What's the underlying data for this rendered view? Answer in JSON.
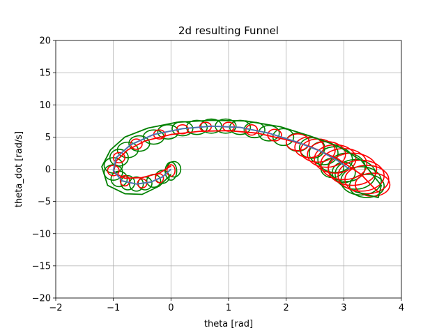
{
  "chart_data": {
    "type": "line",
    "title": "2d resulting Funnel",
    "xlabel": "theta [rad]",
    "ylabel": "theta_dot [rad/s]",
    "xlim": [
      -2,
      4
    ],
    "ylim": [
      -20,
      20
    ],
    "xticks": [
      -2,
      -1,
      0,
      1,
      2,
      3,
      4
    ],
    "yticks": [
      -20,
      -15,
      -10,
      -5,
      0,
      5,
      10,
      15,
      20
    ],
    "xtick_labels": [
      "−2",
      "−1",
      "0",
      "1",
      "2",
      "3",
      "4"
    ],
    "ytick_labels": [
      "−20",
      "−15",
      "−10",
      "−5",
      "0",
      "5",
      "10",
      "15",
      "20"
    ],
    "grid": true,
    "colors": {
      "nominal": "#4c72b0",
      "funnel_outer": "#008000",
      "funnel_inner": "#ff0000"
    },
    "nominal_trajectory": {
      "x": [
        0.0,
        -0.15,
        -0.35,
        -0.6,
        -0.85,
        -1.0,
        -0.95,
        -0.7,
        -0.3,
        0.2,
        0.7,
        1.2,
        1.7,
        2.2,
        2.6,
        2.9,
        3.1
      ],
      "y": [
        0.0,
        -1.2,
        -2.0,
        -2.3,
        -1.8,
        -0.2,
        1.8,
        3.8,
        5.4,
        6.3,
        6.7,
        6.5,
        5.6,
        4.2,
        2.8,
        1.3,
        0.0
      ]
    },
    "funnel_ellipses": [
      {
        "x": 0.05,
        "y": 0.0,
        "rx": 0.12,
        "ry": 1.2,
        "color": "outer"
      },
      {
        "x": 0.0,
        "y": -0.3,
        "rx": 0.1,
        "ry": 1.4,
        "color": "outer"
      },
      {
        "x": -0.15,
        "y": -1.2,
        "rx": 0.12,
        "ry": 1.0,
        "color": "outer"
      },
      {
        "x": -0.3,
        "y": -1.8,
        "rx": 0.12,
        "ry": 1.0,
        "color": "outer"
      },
      {
        "x": -0.45,
        "y": -2.2,
        "rx": 0.12,
        "ry": 1.0,
        "color": "outer"
      },
      {
        "x": -0.6,
        "y": -2.3,
        "rx": 0.12,
        "ry": 1.1,
        "color": "outer"
      },
      {
        "x": -0.75,
        "y": -2.1,
        "rx": 0.12,
        "ry": 1.1,
        "color": "outer"
      },
      {
        "x": -0.9,
        "y": -1.5,
        "rx": 0.14,
        "ry": 1.2,
        "color": "outer"
      },
      {
        "x": -1.0,
        "y": -0.5,
        "rx": 0.16,
        "ry": 1.2,
        "color": "outer"
      },
      {
        "x": -1.0,
        "y": 0.6,
        "rx": 0.16,
        "ry": 1.2,
        "color": "outer"
      },
      {
        "x": -0.9,
        "y": 1.8,
        "rx": 0.16,
        "ry": 1.3,
        "color": "outer"
      },
      {
        "x": -0.75,
        "y": 3.0,
        "rx": 0.18,
        "ry": 1.2,
        "color": "outer"
      },
      {
        "x": -0.55,
        "y": 4.0,
        "rx": 0.18,
        "ry": 1.2,
        "color": "outer"
      },
      {
        "x": -0.3,
        "y": 5.0,
        "rx": 0.18,
        "ry": 1.1,
        "color": "outer"
      },
      {
        "x": -0.05,
        "y": 5.8,
        "rx": 0.18,
        "ry": 1.1,
        "color": "outer"
      },
      {
        "x": 0.2,
        "y": 6.3,
        "rx": 0.18,
        "ry": 1.1,
        "color": "outer"
      },
      {
        "x": 0.45,
        "y": 6.5,
        "rx": 0.18,
        "ry": 1.1,
        "color": "outer"
      },
      {
        "x": 0.7,
        "y": 6.7,
        "rx": 0.18,
        "ry": 1.1,
        "color": "outer"
      },
      {
        "x": 0.95,
        "y": 6.7,
        "rx": 0.18,
        "ry": 1.1,
        "color": "outer"
      },
      {
        "x": 1.2,
        "y": 6.5,
        "rx": 0.18,
        "ry": 1.1,
        "color": "outer"
      },
      {
        "x": 1.45,
        "y": 6.1,
        "rx": 0.18,
        "ry": 1.2,
        "color": "outer"
      },
      {
        "x": 1.7,
        "y": 5.6,
        "rx": 0.18,
        "ry": 1.2,
        "color": "outer"
      },
      {
        "x": 1.95,
        "y": 5.0,
        "rx": 0.18,
        "ry": 1.3,
        "color": "outer"
      },
      {
        "x": 2.2,
        "y": 4.2,
        "rx": 0.2,
        "ry": 1.4,
        "color": "outer"
      },
      {
        "x": 2.45,
        "y": 3.3,
        "rx": 0.22,
        "ry": 1.6,
        "color": "outer"
      },
      {
        "x": 2.65,
        "y": 2.5,
        "rx": 0.25,
        "ry": 1.8,
        "color": "outer"
      },
      {
        "x": 2.85,
        "y": 1.5,
        "rx": 0.3,
        "ry": 2.0,
        "color": "outer"
      },
      {
        "x": 3.05,
        "y": 0.3,
        "rx": 0.32,
        "ry": 2.2,
        "color": "outer"
      },
      {
        "x": 3.2,
        "y": -0.8,
        "rx": 0.35,
        "ry": 2.3,
        "color": "outer"
      },
      {
        "x": 3.3,
        "y": -1.8,
        "rx": 0.35,
        "ry": 2.2,
        "color": "outer"
      },
      {
        "x": 3.4,
        "y": -2.6,
        "rx": 0.3,
        "ry": 1.8,
        "color": "outer"
      },
      {
        "x": 3.0,
        "y": -0.5,
        "rx": 0.2,
        "ry": 1.6,
        "color": "outer"
      },
      {
        "x": 2.8,
        "y": 0.2,
        "rx": 0.2,
        "ry": 1.5,
        "color": "outer"
      },
      {
        "x": 0.0,
        "y": -0.2,
        "rx": 0.07,
        "ry": 0.9,
        "color": "inner"
      },
      {
        "x": -0.2,
        "y": -1.4,
        "rx": 0.07,
        "ry": 0.7,
        "color": "inner"
      },
      {
        "x": -0.5,
        "y": -2.2,
        "rx": 0.08,
        "ry": 0.7,
        "color": "inner"
      },
      {
        "x": -0.8,
        "y": -1.8,
        "rx": 0.08,
        "ry": 0.8,
        "color": "inner"
      },
      {
        "x": -1.0,
        "y": -0.2,
        "rx": 0.1,
        "ry": 0.8,
        "color": "inner"
      },
      {
        "x": -0.9,
        "y": 1.8,
        "rx": 0.1,
        "ry": 0.8,
        "color": "inner"
      },
      {
        "x": -0.6,
        "y": 3.9,
        "rx": 0.1,
        "ry": 0.8,
        "color": "inner"
      },
      {
        "x": -0.2,
        "y": 5.4,
        "rx": 0.1,
        "ry": 0.7,
        "color": "inner"
      },
      {
        "x": 0.2,
        "y": 6.2,
        "rx": 0.1,
        "ry": 0.7,
        "color": "inner"
      },
      {
        "x": 0.6,
        "y": 6.6,
        "rx": 0.1,
        "ry": 0.7,
        "color": "inner"
      },
      {
        "x": 1.0,
        "y": 6.6,
        "rx": 0.1,
        "ry": 0.7,
        "color": "inner"
      },
      {
        "x": 1.4,
        "y": 6.1,
        "rx": 0.1,
        "ry": 0.8,
        "color": "inner"
      },
      {
        "x": 1.8,
        "y": 5.3,
        "rx": 0.12,
        "ry": 0.9,
        "color": "inner"
      },
      {
        "x": 2.2,
        "y": 4.2,
        "rx": 0.2,
        "ry": 1.3,
        "color": "inner"
      },
      {
        "x": 2.4,
        "y": 3.4,
        "rx": 0.25,
        "ry": 1.6,
        "color": "inner"
      },
      {
        "x": 2.55,
        "y": 2.9,
        "rx": 0.3,
        "ry": 1.8,
        "color": "inner"
      },
      {
        "x": 2.7,
        "y": 2.3,
        "rx": 0.33,
        "ry": 2.0,
        "color": "inner"
      },
      {
        "x": 2.85,
        "y": 1.6,
        "rx": 0.36,
        "ry": 2.2,
        "color": "inner"
      },
      {
        "x": 3.0,
        "y": 0.8,
        "rx": 0.4,
        "ry": 2.4,
        "color": "inner"
      },
      {
        "x": 3.15,
        "y": 0.0,
        "rx": 0.42,
        "ry": 2.5,
        "color": "inner"
      },
      {
        "x": 3.3,
        "y": -1.0,
        "rx": 0.4,
        "ry": 2.4,
        "color": "inner"
      },
      {
        "x": 3.4,
        "y": -1.6,
        "rx": 0.38,
        "ry": 2.2,
        "color": "inner"
      },
      {
        "x": 3.5,
        "y": -2.4,
        "rx": 0.3,
        "ry": 1.8,
        "color": "inner"
      }
    ],
    "funnel_boundaries": [
      {
        "color": "outer",
        "x": [
          0.0,
          -0.2,
          -0.5,
          -0.8,
          -1.1,
          -1.2,
          -1.05,
          -0.8,
          -0.4,
          0.1,
          0.7,
          1.3,
          1.9,
          2.4,
          2.9,
          3.3,
          3.65,
          3.6,
          3.2
        ],
        "y": [
          -0.8,
          -2.6,
          -3.9,
          -3.8,
          -2.5,
          0.4,
          3.0,
          5.0,
          6.4,
          7.3,
          7.6,
          7.5,
          6.6,
          5.2,
          3.6,
          1.4,
          -2.5,
          -4.4,
          -3.5
        ]
      },
      {
        "color": "inner",
        "x": [
          0.0,
          -0.2,
          -0.5,
          -0.8,
          -1.0,
          -0.95,
          -0.75,
          -0.45,
          0.0,
          0.5,
          1.0,
          1.5,
          2.0,
          2.4,
          2.9,
          3.3,
          3.6
        ],
        "y": [
          0.5,
          -0.6,
          -1.3,
          -1.4,
          -0.5,
          1.3,
          3.0,
          4.4,
          5.4,
          5.9,
          6.0,
          5.6,
          4.6,
          3.6,
          1.6,
          -0.8,
          -3.6
        ]
      }
    ]
  }
}
